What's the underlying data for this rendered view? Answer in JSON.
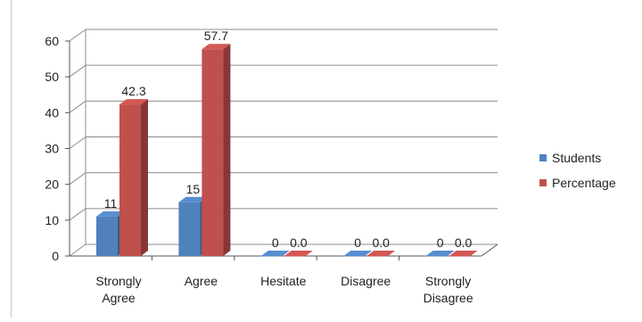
{
  "chart_data": {
    "type": "bar",
    "three_d": true,
    "categories": [
      "Strongly Agree",
      "Agree",
      "Hesitate",
      "Disagree",
      "Strongly Disagree"
    ],
    "category_lines": [
      [
        "Strongly",
        "Agree"
      ],
      [
        "Agree"
      ],
      [
        "Hesitate"
      ],
      [
        "Disagree"
      ],
      [
        "Strongly",
        "Disagree"
      ]
    ],
    "series": [
      {
        "name": "Students",
        "values": [
          11,
          15,
          0,
          0,
          0
        ],
        "labels": [
          "11",
          "15",
          "0",
          "0",
          "0"
        ],
        "color": "#4f81bd"
      },
      {
        "name": "Percentage",
        "values": [
          42.3,
          57.7,
          0.0,
          0.0,
          0.0
        ],
        "labels": [
          "42.3",
          "57.7",
          "0.0",
          "0.0",
          "0.0"
        ],
        "color": "#c0504d"
      }
    ],
    "ylim": [
      0,
      60
    ],
    "yticks": [
      "0",
      "10",
      "20",
      "30",
      "40",
      "50",
      "60"
    ],
    "grid": true,
    "legend_position": "right"
  }
}
